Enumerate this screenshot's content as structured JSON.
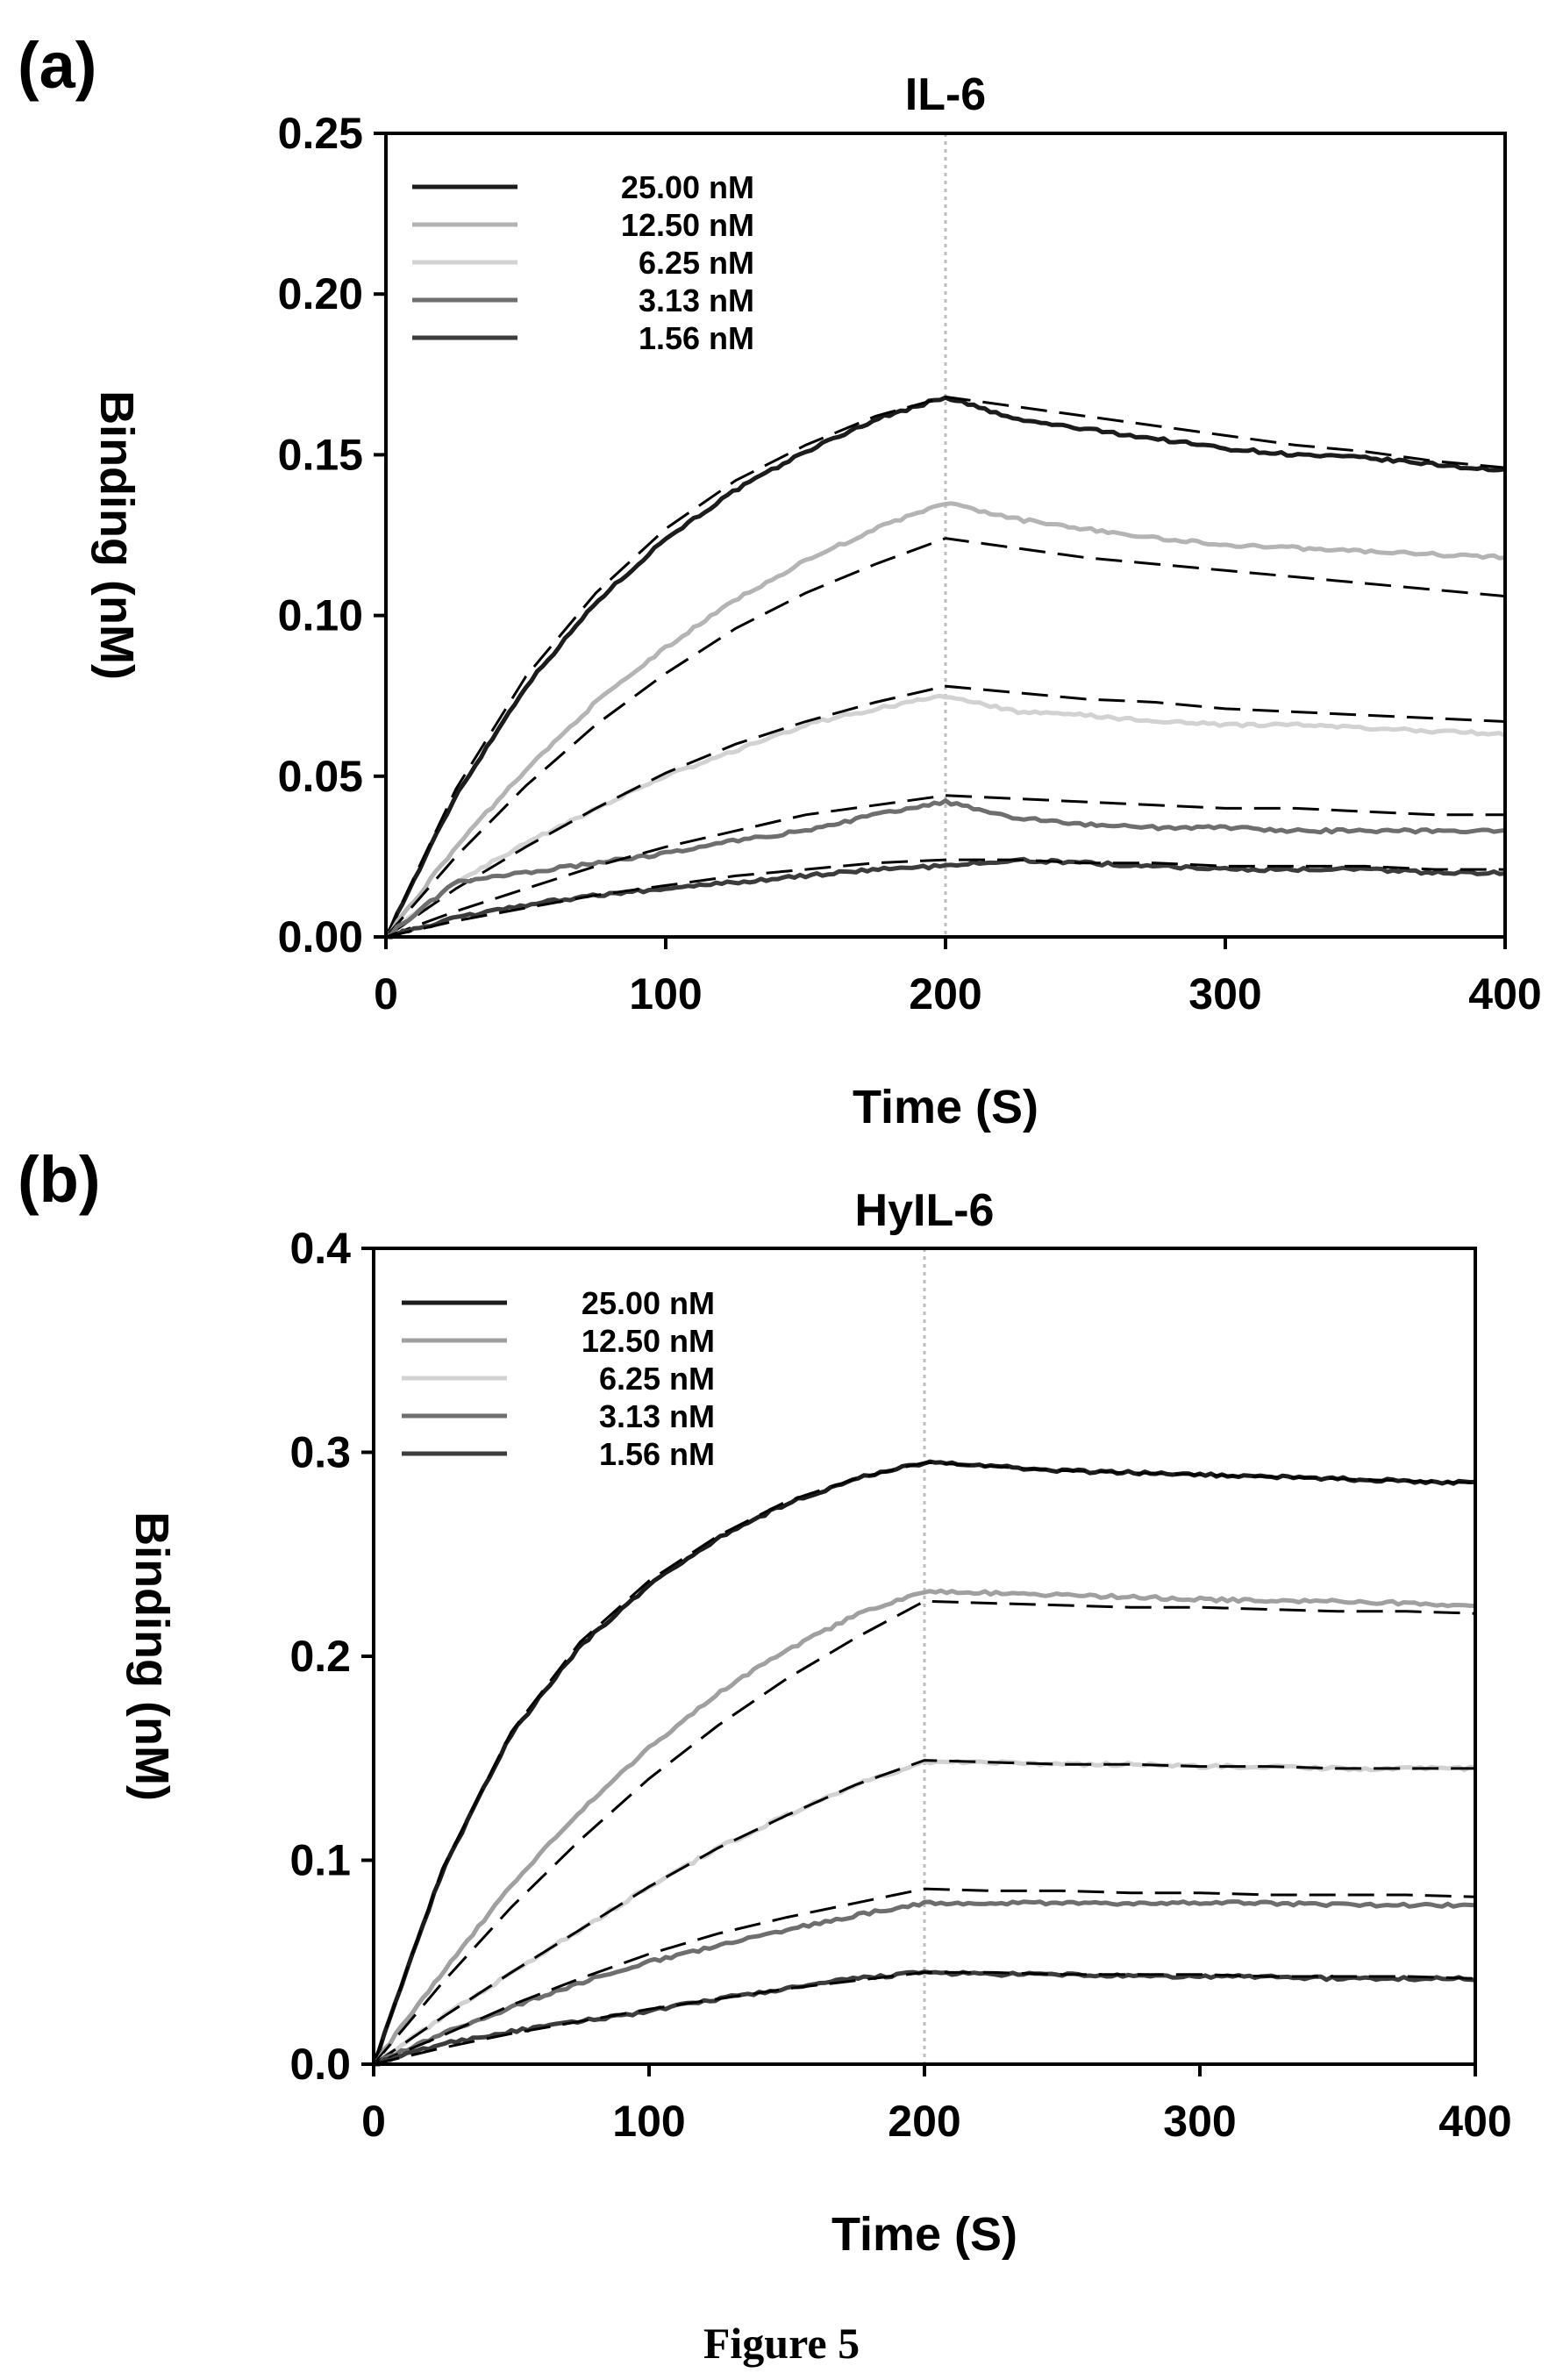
{
  "figure_caption": "Figure 5",
  "chart_data": [
    {
      "panel": "(a)",
      "type": "line",
      "title": "IL-6",
      "xlabel": "Time (S)",
      "ylabel": "Binding (nM)",
      "xlim": [
        0,
        400
      ],
      "ylim": [
        0,
        0.25
      ],
      "xticks": [
        "0",
        "100",
        "200",
        "300",
        "400"
      ],
      "yticks": [
        "0.00",
        "0.05",
        "0.10",
        "0.15",
        "0.20",
        "0.25"
      ],
      "legend_position": "top-left",
      "divider_x": 200,
      "colors": [
        "#1c1c1c",
        "#b4b4b4",
        "#d2d2d2",
        "#6e6e6e",
        "#3c3c3c"
      ],
      "series": [
        {
          "name": "25.00 nM",
          "x": [
            0,
            25,
            50,
            75,
            100,
            125,
            150,
            175,
            200,
            225,
            250,
            275,
            300,
            325,
            350,
            375,
            400
          ],
          "values": [
            0.0,
            0.044,
            0.078,
            0.104,
            0.124,
            0.139,
            0.151,
            0.161,
            0.168,
            0.161,
            0.158,
            0.155,
            0.152,
            0.15,
            0.149,
            0.147,
            0.145
          ],
          "fit": [
            0.0,
            0.046,
            0.081,
            0.107,
            0.127,
            0.142,
            0.153,
            0.162,
            0.168,
            0.165,
            0.162,
            0.159,
            0.156,
            0.153,
            0.151,
            0.148,
            0.146
          ]
        },
        {
          "name": "12.50 nM",
          "x": [
            0,
            25,
            50,
            75,
            100,
            125,
            150,
            175,
            200,
            225,
            250,
            275,
            300,
            325,
            350,
            375,
            400
          ],
          "values": [
            0.0,
            0.028,
            0.052,
            0.073,
            0.09,
            0.105,
            0.117,
            0.127,
            0.135,
            0.13,
            0.127,
            0.124,
            0.122,
            0.121,
            0.12,
            0.119,
            0.118
          ],
          "fit": [
            0.0,
            0.025,
            0.047,
            0.066,
            0.082,
            0.096,
            0.107,
            0.116,
            0.124,
            0.121,
            0.118,
            0.116,
            0.114,
            0.112,
            0.11,
            0.108,
            0.106
          ]
        },
        {
          "name": "6.25 nM",
          "x": [
            0,
            25,
            50,
            75,
            100,
            125,
            150,
            175,
            200,
            225,
            250,
            275,
            300,
            325,
            350,
            375,
            400
          ],
          "values": [
            0.0,
            0.017,
            0.029,
            0.04,
            0.05,
            0.058,
            0.066,
            0.071,
            0.075,
            0.07,
            0.069,
            0.067,
            0.066,
            0.066,
            0.065,
            0.064,
            0.063
          ],
          "fit": [
            0.0,
            0.015,
            0.028,
            0.04,
            0.051,
            0.06,
            0.067,
            0.073,
            0.078,
            0.076,
            0.074,
            0.073,
            0.071,
            0.07,
            0.069,
            0.068,
            0.067
          ]
        },
        {
          "name": "3.13 nM",
          "x": [
            0,
            25,
            50,
            75,
            100,
            125,
            150,
            175,
            200,
            225,
            250,
            275,
            300,
            325,
            350,
            375,
            400
          ],
          "values": [
            0.0,
            0.017,
            0.02,
            0.023,
            0.026,
            0.03,
            0.033,
            0.038,
            0.042,
            0.037,
            0.035,
            0.034,
            0.034,
            0.033,
            0.033,
            0.033,
            0.033
          ],
          "fit": [
            0.0,
            0.008,
            0.015,
            0.022,
            0.028,
            0.033,
            0.038,
            0.041,
            0.044,
            0.043,
            0.042,
            0.041,
            0.04,
            0.04,
            0.039,
            0.038,
            0.038
          ]
        },
        {
          "name": "1.56 nM",
          "x": [
            0,
            25,
            50,
            75,
            100,
            125,
            150,
            175,
            200,
            225,
            250,
            275,
            300,
            325,
            350,
            375,
            400
          ],
          "values": [
            0.0,
            0.006,
            0.01,
            0.013,
            0.015,
            0.017,
            0.019,
            0.021,
            0.022,
            0.024,
            0.023,
            0.022,
            0.021,
            0.021,
            0.021,
            0.02,
            0.02
          ],
          "fit": [
            0.0,
            0.005,
            0.009,
            0.013,
            0.016,
            0.019,
            0.021,
            0.023,
            0.024,
            0.024,
            0.023,
            0.023,
            0.022,
            0.022,
            0.022,
            0.021,
            0.021
          ]
        }
      ]
    },
    {
      "panel": "(b)",
      "type": "line",
      "title": "HyIL-6",
      "xlabel": "Time (S)",
      "ylabel": "Binding (nM)",
      "xlim": [
        0,
        400
      ],
      "ylim": [
        0,
        0.4
      ],
      "xticks": [
        "0",
        "100",
        "200",
        "300",
        "400"
      ],
      "yticks": [
        "0.0",
        "0.1",
        "0.2",
        "0.3",
        "0.4"
      ],
      "legend_position": "top-left",
      "divider_x": 200,
      "colors": [
        "#1c1c1c",
        "#a0a0a0",
        "#d2d2d2",
        "#6e6e6e",
        "#3c3c3c"
      ],
      "series": [
        {
          "name": "25.00 nM",
          "x": [
            0,
            25,
            50,
            75,
            100,
            125,
            150,
            175,
            200,
            225,
            250,
            275,
            300,
            325,
            350,
            375,
            400
          ],
          "values": [
            0.0,
            0.095,
            0.162,
            0.205,
            0.235,
            0.258,
            0.275,
            0.287,
            0.295,
            0.293,
            0.291,
            0.29,
            0.289,
            0.288,
            0.287,
            0.286,
            0.285
          ],
          "fit": [
            0.0,
            0.096,
            0.163,
            0.207,
            0.237,
            0.259,
            0.276,
            0.287,
            0.295,
            0.293,
            0.291,
            0.29,
            0.289,
            0.288,
            0.287,
            0.286,
            0.285
          ]
        },
        {
          "name": "12.50 nM",
          "x": [
            0,
            25,
            50,
            75,
            100,
            125,
            150,
            175,
            200,
            225,
            250,
            275,
            300,
            325,
            350,
            375,
            400
          ],
          "values": [
            0.0,
            0.045,
            0.088,
            0.124,
            0.155,
            0.182,
            0.203,
            0.22,
            0.232,
            0.231,
            0.23,
            0.229,
            0.228,
            0.227,
            0.227,
            0.226,
            0.225
          ],
          "fit": [
            0.0,
            0.04,
            0.077,
            0.11,
            0.14,
            0.166,
            0.189,
            0.209,
            0.227,
            0.226,
            0.225,
            0.224,
            0.224,
            0.223,
            0.222,
            0.222,
            0.221
          ]
        },
        {
          "name": "6.25 nM",
          "x": [
            0,
            25,
            50,
            75,
            100,
            125,
            150,
            175,
            200,
            225,
            250,
            275,
            300,
            325,
            350,
            375,
            400
          ],
          "values": [
            0.0,
            0.023,
            0.045,
            0.066,
            0.087,
            0.106,
            0.122,
            0.137,
            0.148,
            0.148,
            0.147,
            0.147,
            0.146,
            0.146,
            0.145,
            0.145,
            0.145
          ],
          "fit": [
            0.0,
            0.023,
            0.045,
            0.066,
            0.087,
            0.106,
            0.122,
            0.137,
            0.149,
            0.148,
            0.147,
            0.147,
            0.146,
            0.146,
            0.145,
            0.145,
            0.145
          ]
        },
        {
          "name": "3.13 nM",
          "x": [
            0,
            25,
            50,
            75,
            100,
            125,
            150,
            175,
            200,
            225,
            250,
            275,
            300,
            325,
            350,
            375,
            400
          ],
          "values": [
            0.0,
            0.015,
            0.028,
            0.04,
            0.05,
            0.058,
            0.066,
            0.073,
            0.079,
            0.079,
            0.079,
            0.079,
            0.079,
            0.079,
            0.078,
            0.078,
            0.078
          ],
          "fit": [
            0.0,
            0.014,
            0.029,
            0.042,
            0.054,
            0.064,
            0.072,
            0.079,
            0.086,
            0.085,
            0.085,
            0.084,
            0.084,
            0.083,
            0.083,
            0.083,
            0.082
          ]
        },
        {
          "name": "1.56 nM",
          "x": [
            0,
            25,
            50,
            75,
            100,
            125,
            150,
            175,
            200,
            225,
            250,
            275,
            300,
            325,
            350,
            375,
            400
          ],
          "values": [
            0.0,
            0.01,
            0.016,
            0.021,
            0.026,
            0.032,
            0.037,
            0.042,
            0.045,
            0.044,
            0.044,
            0.043,
            0.043,
            0.043,
            0.042,
            0.042,
            0.042
          ],
          "fit": [
            0.0,
            0.008,
            0.015,
            0.021,
            0.027,
            0.032,
            0.037,
            0.041,
            0.045,
            0.045,
            0.044,
            0.044,
            0.044,
            0.043,
            0.043,
            0.043,
            0.042
          ]
        }
      ]
    }
  ]
}
